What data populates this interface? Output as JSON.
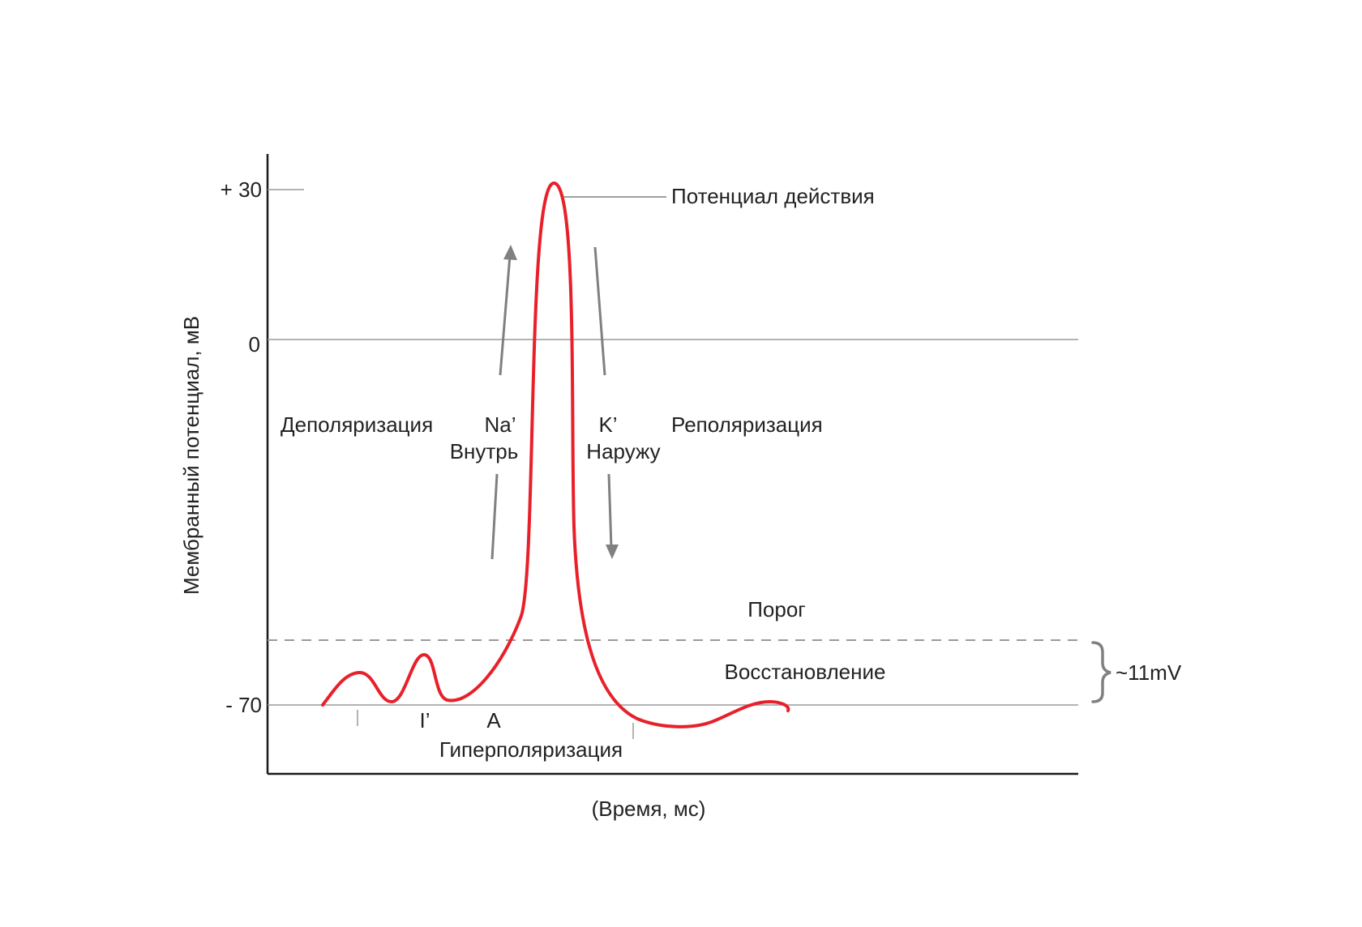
{
  "colors": {
    "curve": "#e8202a",
    "axis": "#1a1a1a",
    "guide_lines": "#9a9a9a",
    "arrows": "#808080",
    "text": "#222222"
  },
  "axes": {
    "y_label": "Мембранный потенциал, мВ",
    "x_label": "(Время, мс)",
    "y_ticks": [
      "+ 30",
      "0",
      "- 70"
    ]
  },
  "labels": {
    "action_potential": "Потенциал действия",
    "depolarization": "Деполяризация",
    "repolarization": "Реполяризация",
    "na_ion": "Na’",
    "na_direction": "Внутрь",
    "k_ion": "K’",
    "k_direction": "Наружу",
    "threshold": "Порог",
    "recovery": "Восстановление",
    "threshold_gap": "~11mV",
    "hyperpolarization": "Гиперполяризация",
    "marker_i": "I’",
    "marker_a": "A"
  },
  "icons": {
    "na_arrow": "arrow-up-icon",
    "k_arrow": "arrow-down-icon",
    "gap_brace": "curly-brace-icon"
  }
}
